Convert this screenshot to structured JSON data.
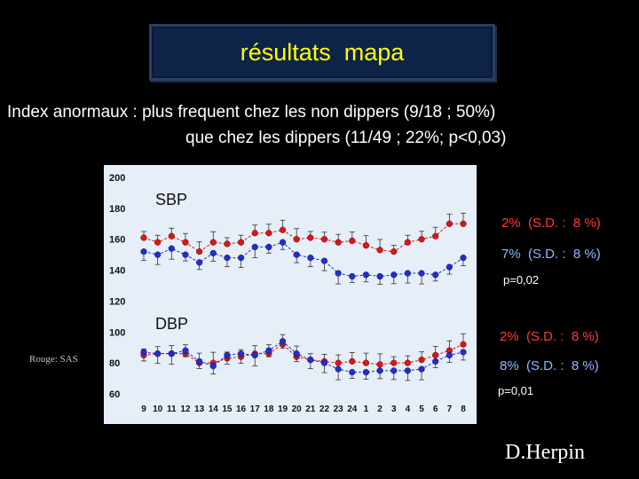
{
  "header": {
    "title": "résultats  mapa",
    "line1": "Index anormaux : plus frequent chez les non dippers (9/18 ; 50%)",
    "line2": "que chez les dippers (11/49 ; 22%; p<0,03)"
  },
  "stats": {
    "sbp_red": "2%  (S.D. :  8 %)",
    "sbp_blue": "7%  (S.D. :  8 %)",
    "sbp_p": "p=0,02",
    "dbp_red": "2%  (S.D. :  8 %)",
    "dbp_blue": "8%  (S.D. :  8 %)",
    "dbp_p": "p=0,01"
  },
  "legend_note": "Rouge: SAS",
  "author": "D.Herpin",
  "colors": {
    "red": "#dd1111",
    "blue": "#1a2fd6",
    "plot_bg": "#e6eef8",
    "title_text": "#ffff00"
  },
  "chart_data": {
    "type": "line",
    "categories": [
      "9",
      "10",
      "11",
      "12",
      "13",
      "14",
      "15",
      "16",
      "17",
      "18",
      "19",
      "20",
      "21",
      "22",
      "23",
      "24",
      "1",
      "2",
      "3",
      "4",
      "5",
      "6",
      "7",
      "8"
    ],
    "ylim": [
      60,
      200
    ],
    "yticks": [
      60,
      80,
      100,
      120,
      140,
      160,
      180,
      200
    ],
    "annotations": [
      "SBP",
      "DBP"
    ],
    "grid": false,
    "series": [
      {
        "group": "SBP",
        "color": "red",
        "values": [
          161,
          158,
          162,
          158,
          152,
          158,
          157,
          158,
          164,
          164,
          166,
          160,
          161,
          160,
          158,
          159,
          156,
          153,
          152,
          158,
          160,
          162,
          170,
          170
        ]
      },
      {
        "group": "SBP",
        "color": "blue",
        "values": [
          152,
          150,
          154,
          150,
          145,
          151,
          148,
          148,
          155,
          155,
          158,
          150,
          148,
          146,
          138,
          136,
          137,
          136,
          137,
          138,
          138,
          137,
          142,
          148
        ]
      },
      {
        "group": "DBP",
        "color": "red",
        "values": [
          85,
          86,
          86,
          86,
          80,
          80,
          83,
          84,
          86,
          86,
          92,
          84,
          82,
          81,
          80,
          81,
          80,
          79,
          80,
          80,
          82,
          85,
          88,
          92
        ]
      },
      {
        "group": "DBP",
        "color": "blue",
        "values": [
          87,
          86,
          86,
          88,
          81,
          78,
          85,
          86,
          85,
          88,
          94,
          86,
          82,
          80,
          76,
          74,
          74,
          75,
          75,
          75,
          76,
          81,
          85,
          87
        ]
      }
    ]
  }
}
